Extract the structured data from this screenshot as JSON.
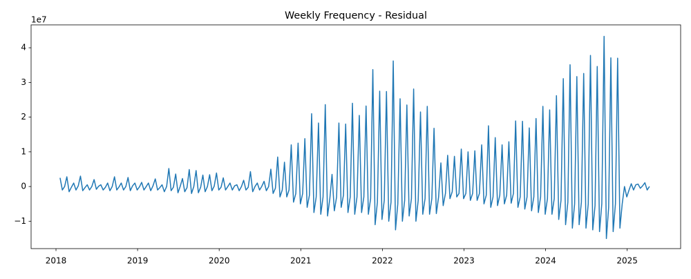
{
  "chart_data": {
    "type": "line",
    "title": "Weekly Frequency - Residual",
    "offset_label": "1e7",
    "color": "#1f77b4",
    "xlim": [
      2017.695,
      2025.655
    ],
    "xticks": [
      2018,
      2019,
      2020,
      2021,
      2022,
      2023,
      2024,
      2025
    ],
    "ylim": [
      -1.79,
      4.66
    ],
    "yticks": [
      {
        "value": -1,
        "label": "−1"
      },
      0,
      1,
      2,
      3,
      4
    ],
    "x": [
      2018.05,
      2018.078,
      2018.106,
      2018.133,
      2018.161,
      2018.189,
      2018.217,
      2018.245,
      2018.273,
      2018.3,
      2018.328,
      2018.356,
      2018.383,
      2018.411,
      2018.439,
      2018.467,
      2018.495,
      2018.523,
      2018.55,
      2018.578,
      2018.606,
      2018.633,
      2018.661,
      2018.689,
      2018.717,
      2018.745,
      2018.773,
      2018.8,
      2018.828,
      2018.856,
      2018.883,
      2018.911,
      2018.939,
      2018.967,
      2018.995,
      2019.023,
      2019.05,
      2019.078,
      2019.106,
      2019.133,
      2019.161,
      2019.189,
      2019.217,
      2019.245,
      2019.273,
      2019.3,
      2019.328,
      2019.356,
      2019.383,
      2019.411,
      2019.439,
      2019.467,
      2019.495,
      2019.523,
      2019.55,
      2019.578,
      2019.606,
      2019.633,
      2019.661,
      2019.689,
      2019.717,
      2019.745,
      2019.773,
      2019.8,
      2019.828,
      2019.856,
      2019.883,
      2019.911,
      2019.939,
      2019.967,
      2019.995,
      2020.023,
      2020.05,
      2020.078,
      2020.106,
      2020.133,
      2020.161,
      2020.189,
      2020.217,
      2020.245,
      2020.273,
      2020.3,
      2020.328,
      2020.356,
      2020.383,
      2020.411,
      2020.439,
      2020.467,
      2020.495,
      2020.523,
      2020.55,
      2020.578,
      2020.606,
      2020.633,
      2020.661,
      2020.689,
      2020.717,
      2020.745,
      2020.773,
      2020.8,
      2020.828,
      2020.856,
      2020.883,
      2020.911,
      2020.939,
      2020.967,
      2020.995,
      2021.023,
      2021.05,
      2021.078,
      2021.106,
      2021.133,
      2021.161,
      2021.189,
      2021.217,
      2021.245,
      2021.273,
      2021.3,
      2021.328,
      2021.356,
      2021.383,
      2021.411,
      2021.439,
      2021.467,
      2021.495,
      2021.523,
      2021.55,
      2021.578,
      2021.606,
      2021.633,
      2021.661,
      2021.689,
      2021.717,
      2021.745,
      2021.773,
      2021.8,
      2021.828,
      2021.856,
      2021.883,
      2021.911,
      2021.939,
      2021.967,
      2021.995,
      2022.023,
      2022.05,
      2022.078,
      2022.106,
      2022.133,
      2022.161,
      2022.189,
      2022.217,
      2022.245,
      2022.273,
      2022.3,
      2022.328,
      2022.356,
      2022.383,
      2022.411,
      2022.439,
      2022.467,
      2022.495,
      2022.523,
      2022.55,
      2022.578,
      2022.606,
      2022.633,
      2022.661,
      2022.689,
      2022.717,
      2022.745,
      2022.773,
      2022.8,
      2022.828,
      2022.856,
      2022.883,
      2022.911,
      2022.939,
      2022.967,
      2022.995,
      2023.023,
      2023.05,
      2023.078,
      2023.106,
      2023.133,
      2023.161,
      2023.189,
      2023.217,
      2023.245,
      2023.273,
      2023.3,
      2023.328,
      2023.356,
      2023.383,
      2023.411,
      2023.439,
      2023.467,
      2023.495,
      2023.523,
      2023.55,
      2023.578,
      2023.606,
      2023.633,
      2023.661,
      2023.689,
      2023.717,
      2023.745,
      2023.773,
      2023.8,
      2023.828,
      2023.856,
      2023.883,
      2023.911,
      2023.939,
      2023.967,
      2023.995,
      2024.023,
      2024.05,
      2024.078,
      2024.106,
      2024.133,
      2024.161,
      2024.189,
      2024.217,
      2024.245,
      2024.273,
      2024.3,
      2024.328,
      2024.356,
      2024.383,
      2024.411,
      2024.439,
      2024.467,
      2024.495,
      2024.523,
      2024.55,
      2024.578,
      2024.606,
      2024.633,
      2024.661,
      2024.689,
      2024.717,
      2024.745,
      2024.773,
      2024.8,
      2024.828,
      2024.856,
      2024.883,
      2024.911,
      2024.939,
      2024.967,
      2024.995,
      2025.023,
      2025.05,
      2025.078,
      2025.106,
      2025.133,
      2025.161,
      2025.189,
      2025.217,
      2025.245,
      2025.273
    ],
    "values": [
      0.25,
      -0.1,
      0.0,
      0.28,
      -0.15,
      -0.02,
      0.1,
      -0.1,
      0.02,
      0.3,
      -0.12,
      -0.03,
      0.05,
      -0.1,
      0,
      0.2,
      -0.08,
      0.01,
      0.05,
      -0.1,
      -0.02,
      0.1,
      -0.12,
      0,
      0.28,
      -0.1,
      -0.01,
      0.1,
      -0.1,
      0,
      0.26,
      -0.12,
      0.02,
      0.1,
      -0.1,
      -0.01,
      0.12,
      -0.1,
      0,
      0.1,
      -0.12,
      0.02,
      0.22,
      -0.1,
      -0.03,
      0.05,
      -0.15,
      0,
      0.52,
      -0.12,
      -0.02,
      0.36,
      -0.18,
      0.01,
      0.23,
      -0.15,
      -0.03,
      0.49,
      -0.2,
      0,
      0.46,
      -0.18,
      -0.02,
      0.33,
      -0.15,
      0,
      0.34,
      -0.12,
      0.01,
      0.39,
      -0.1,
      -0.02,
      0.25,
      -0.1,
      0,
      0.1,
      -0.1,
      0.02,
      0.05,
      -0.12,
      0,
      0.18,
      -0.1,
      -0.02,
      0.43,
      -0.15,
      0,
      0.1,
      -0.1,
      0.01,
      0.15,
      -0.12,
      0,
      0.5,
      -0.2,
      -0.05,
      0.85,
      -0.3,
      -0.1,
      0.7,
      -0.3,
      -0.1,
      1.2,
      -0.45,
      -0.2,
      1.25,
      -0.5,
      -0.2,
      1.38,
      -0.6,
      -0.25,
      2.1,
      -0.75,
      -0.3,
      1.83,
      -0.8,
      -0.3,
      2.36,
      -0.85,
      -0.35,
      0.35,
      -0.7,
      -0.3,
      1.83,
      -0.6,
      -0.25,
      1.8,
      -0.75,
      -0.3,
      2.4,
      -0.8,
      -0.3,
      2.05,
      -0.75,
      -0.3,
      2.32,
      -0.8,
      -0.35,
      3.37,
      -1.1,
      -0.45,
      2.75,
      -0.95,
      -0.4,
      2.74,
      -1.0,
      -0.45,
      3.62,
      -1.25,
      -0.5,
      2.53,
      -1.0,
      -0.4,
      2.35,
      -0.85,
      -0.35,
      2.81,
      -1.0,
      -0.4,
      2.15,
      -0.8,
      -0.35,
      2.31,
      -0.8,
      -0.35,
      1.68,
      -0.78,
      -0.3,
      0.68,
      -0.55,
      -0.2,
      0.9,
      -0.35,
      -0.15,
      0.87,
      -0.3,
      -0.2,
      1.08,
      -0.35,
      -0.2,
      1.0,
      -0.4,
      -0.2,
      1.03,
      -0.4,
      -0.2,
      1.2,
      -0.5,
      -0.25,
      1.75,
      -0.6,
      -0.3,
      1.41,
      -0.55,
      -0.25,
      1.2,
      -0.5,
      -0.25,
      1.29,
      -0.48,
      -0.2,
      1.89,
      -0.6,
      -0.3,
      1.88,
      -0.65,
      -0.3,
      1.69,
      -0.7,
      -0.3,
      1.96,
      -0.75,
      -0.3,
      2.31,
      -0.8,
      -0.35,
      2.21,
      -0.8,
      -0.35,
      2.62,
      -0.95,
      -0.4,
      3.11,
      -1.1,
      -0.45,
      3.51,
      -1.2,
      -0.5,
      3.17,
      -1.1,
      -0.45,
      3.26,
      -1.2,
      -0.5,
      3.78,
      -1.25,
      -0.55,
      3.46,
      -1.3,
      -0.5,
      4.33,
      -1.5,
      -0.6,
      3.71,
      -1.3,
      -0.5,
      3.7,
      -1.2,
      -0.5,
      0.0,
      -0.3,
      -0.1,
      0.08,
      -0.1,
      0.05,
      0.07,
      -0.05,
      0.02,
      0.11,
      -0.1,
      0.0
    ]
  }
}
